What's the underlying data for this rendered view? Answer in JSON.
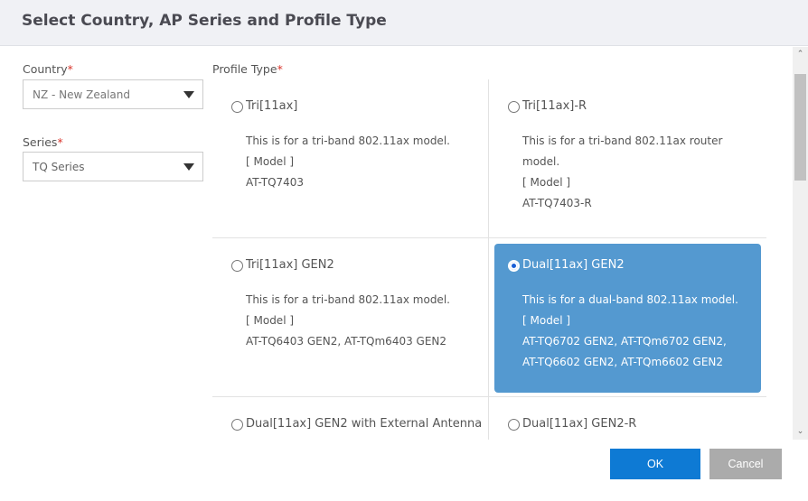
{
  "dialog": {
    "title": "Select Country, AP Series and Profile Type"
  },
  "country": {
    "label": "Country",
    "required": "*",
    "value": "NZ - New Zealand"
  },
  "series": {
    "label": "Series",
    "required": "*",
    "value": "TQ Series"
  },
  "profile_type": {
    "label": "Profile Type",
    "required": "*",
    "options": [
      {
        "title": "Tri[11ax]",
        "lines": [
          "This is for a tri-band 802.11ax model.",
          "[ Model ]",
          "AT-TQ7403"
        ],
        "selected": false
      },
      {
        "title": "Tri[11ax]-R",
        "lines": [
          "This is for a tri-band 802.11ax router",
          "model.",
          "[ Model ]",
          "AT-TQ7403-R"
        ],
        "selected": false
      },
      {
        "title": "Tri[11ax] GEN2",
        "lines": [
          "This is for a tri-band 802.11ax model.",
          "[ Model ]",
          "AT-TQ6403 GEN2, AT-TQm6403 GEN2"
        ],
        "selected": false
      },
      {
        "title": "Dual[11ax] GEN2",
        "lines": [
          "This is for a dual-band 802.11ax model.",
          "[ Model ]",
          "AT-TQ6702 GEN2, AT-TQm6702 GEN2,",
          "AT-TQ6602 GEN2, AT-TQm6602 GEN2"
        ],
        "selected": true
      },
      {
        "title": "Dual[11ax] GEN2 with External Antenna",
        "lines": [],
        "selected": false
      },
      {
        "title": "Dual[11ax] GEN2-R",
        "lines": [],
        "selected": false
      }
    ]
  },
  "buttons": {
    "ok": "OK",
    "cancel": "Cancel"
  },
  "colors": {
    "selected_bg": "#5499d0",
    "ok_bg": "#0e7ad4",
    "cancel_bg": "#ababab",
    "required": "#d9342b"
  }
}
